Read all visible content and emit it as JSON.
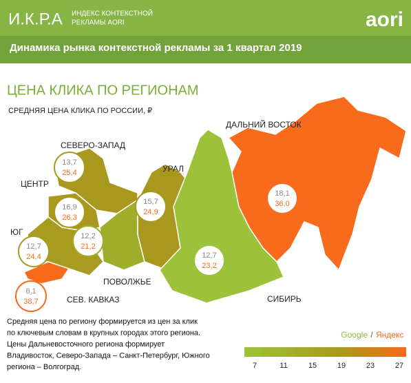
{
  "header": {
    "logo": "И.К.Р.А",
    "logo_subtitle": [
      "ИНДЕКС КОНТЕКСТНОЙ",
      "РЕКЛАМЫ AORI"
    ],
    "brand": "aori",
    "title": "Динамика рынка контекстной рекламы за 1 квартал 2019"
  },
  "map": {
    "title": "ЦЕНА КЛИКА ПО РЕГИОНАМ",
    "subtitle": "СРЕДНЯЯ ЦЕНА КЛИКА ПО РОССИИ, ₽",
    "regions": [
      {
        "name": "СЕВЕРО-ЗАПАД",
        "google": "13,7",
        "yandex": "25,4",
        "color": "#a8991e"
      },
      {
        "name": "ЦЕНТР",
        "google": "16,9",
        "yandex": "26,3",
        "color": "#a8991e"
      },
      {
        "name": "ЮГ",
        "google": "12,7",
        "yandex": "24,4",
        "color": "#a89c20"
      },
      {
        "name": "СЕВ. КАВКАЗ",
        "google": "8,1",
        "yandex": "38,7",
        "color": "#f86a1c"
      },
      {
        "name": "ПОВОЛЖЬЕ",
        "google": "12,2",
        "yandex": "21,2",
        "color": "#9fae2a"
      },
      {
        "name": "УРАЛ",
        "google": "15,7",
        "yandex": "24,9",
        "color": "#a8991e"
      },
      {
        "name": "СИБИРЬ",
        "google": "12,7",
        "yandex": "23,2",
        "color": "#9cc23a"
      },
      {
        "name": "ДАЛЬНИЙ ВОСТОК",
        "google": "18,1",
        "yandex": "36,0",
        "color": "#f86a1c"
      }
    ]
  },
  "legend": {
    "google": "Google",
    "separator": "/",
    "yandex": "Яндекс",
    "ticks": [
      "7",
      "11",
      "15",
      "19",
      "23",
      "27"
    ]
  },
  "note": [
    "Средняя цена по региону формируется из цен за клик",
    "по ключевым словам в крупных городах этого региона.",
    "Цены Дальневосточного региона формирует",
    "Владивосток, Северо-Запада – Санкт-Петербург, Южного",
    "региона – Волгоград."
  ]
}
